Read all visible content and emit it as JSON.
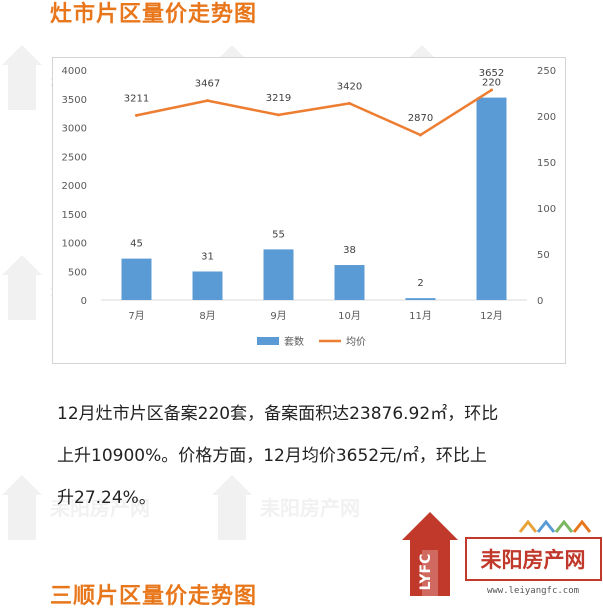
{
  "headings": {
    "top": "灶市片区量价走势图",
    "bottom": "三顺片区量价走势图"
  },
  "summary": {
    "line1": "12月灶市片区备案220套，备案面积达23876.92㎡，环比",
    "line2": "上升10900%。价格方面，12月均价3652元/㎡，环比上",
    "line3": "升27.24%。"
  },
  "watermark": {
    "text": "耒阳房产网"
  },
  "logo": {
    "mark": "LYFC",
    "name": "耒阳房产网",
    "url": "www.leiyangfc.com"
  },
  "colors": {
    "accent": "#e8761a",
    "bar": "#5b9bd5",
    "line": "#ed7d31"
  },
  "chart_data": {
    "type": "bar",
    "categories": [
      "7月",
      "8月",
      "9月",
      "10月",
      "11月",
      "12月"
    ],
    "series": [
      {
        "name": "套数",
        "type": "bar",
        "axis": "right",
        "values": [
          45,
          31,
          55,
          38,
          2,
          220
        ]
      },
      {
        "name": "均价",
        "type": "line",
        "axis": "left",
        "values": [
          3211,
          3467,
          3219,
          3420,
          2870,
          3652
        ]
      }
    ],
    "y_left": {
      "min": 0,
      "max": 4000,
      "ticks": [
        0,
        500,
        1000,
        1500,
        2000,
        2500,
        3000,
        3500,
        4000
      ]
    },
    "y_right": {
      "min": 0,
      "max": 250,
      "ticks": [
        0,
        50,
        100,
        150,
        200,
        250
      ]
    },
    "grid": false,
    "legend": "bottom"
  }
}
